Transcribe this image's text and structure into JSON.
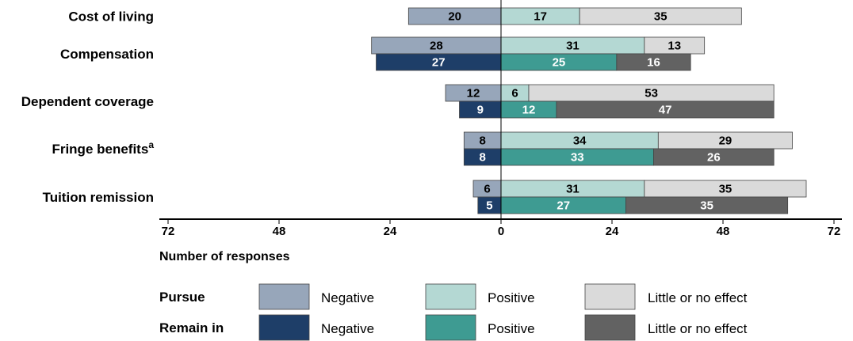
{
  "chart_data": {
    "type": "bar",
    "orientation": "horizontal-diverging",
    "categories": [
      "Cost of living",
      "Compensation",
      "Dependent coverage",
      "Fringe benefits",
      "Tuition remission"
    ],
    "category_superscripts": [
      "",
      "",
      "",
      "a",
      ""
    ],
    "groups": [
      {
        "name": "Pursue",
        "negative": [
          20,
          28,
          12,
          8,
          6
        ],
        "positive": [
          17,
          31,
          6,
          34,
          31
        ],
        "little_or_no_effect": [
          35,
          13,
          53,
          29,
          35
        ]
      },
      {
        "name": "Remain in",
        "negative": [
          null,
          27,
          9,
          8,
          5
        ],
        "positive": [
          null,
          25,
          12,
          33,
          27
        ],
        "little_or_no_effect": [
          null,
          16,
          47,
          26,
          35
        ]
      }
    ],
    "xlabel": "Number of responses",
    "x_tick_labels": [
      "72",
      "48",
      "24",
      "0",
      "24",
      "48",
      "72"
    ],
    "xlim": [
      -72,
      72
    ],
    "grid": false,
    "legend": {
      "placement": "bottom",
      "labels": [
        "Negative",
        "Positive",
        "Little or no effect"
      ]
    },
    "colors": {
      "pursue_negative": "#97a6ba",
      "pursue_positive": "#b4d8d3",
      "pursue_little": "#dadada",
      "remain_negative": "#1e3e68",
      "remain_positive": "#3e9b92",
      "remain_little": "#626262"
    }
  }
}
